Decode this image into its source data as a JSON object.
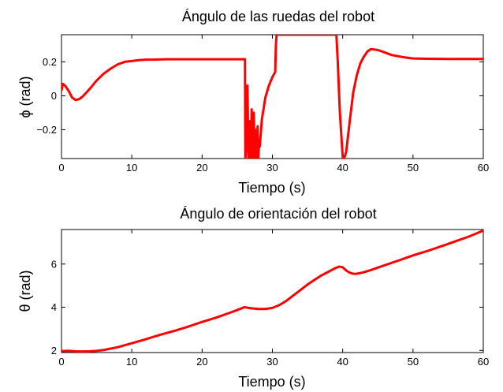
{
  "chart_data": [
    {
      "type": "line",
      "title": "Ángulo de las ruedas del robot",
      "xlabel": "Tiempo (s)",
      "ylabel": "ϕ (rad)",
      "xlim": [
        0,
        60
      ],
      "ylim": [
        -0.37,
        0.36
      ],
      "xticks": [
        0,
        10,
        20,
        30,
        40,
        50,
        60
      ],
      "yticks": [
        -0.2,
        0,
        0.2
      ],
      "ytick_labels": [
        "−0.2",
        "0",
        "0.2"
      ],
      "grid": false,
      "line_color": "#ff0000",
      "series": [
        {
          "x": [
            0,
            0.2,
            0.5,
            1,
            1.5,
            2,
            2.5,
            3,
            4,
            5,
            6,
            7,
            8,
            9,
            10,
            11,
            12,
            13,
            14,
            15,
            20,
            25,
            26.1,
            26.15,
            26.3,
            26.45,
            26.6,
            26.75,
            26.9,
            27.05,
            27.2,
            27.35,
            27.5,
            27.6,
            27.75,
            27.9,
            28,
            28.1,
            28.2,
            28.5,
            29,
            29.5,
            30,
            30.4,
            30.5,
            30.6,
            35,
            39.1,
            39.3,
            39.6,
            40,
            40.2,
            40.5,
            41,
            41.5,
            42,
            42.5,
            43,
            43.5,
            44,
            45,
            46,
            47,
            48,
            49,
            50,
            52,
            55,
            60
          ],
          "y": [
            0.03,
            0.07,
            0.06,
            0.03,
            -0.01,
            -0.025,
            -0.02,
            -0.005,
            0.04,
            0.09,
            0.13,
            0.16,
            0.185,
            0.2,
            0.205,
            0.21,
            0.213,
            0.213,
            0.214,
            0.215,
            0.215,
            0.215,
            0.215,
            -0.37,
            -0.3,
            0.06,
            -0.37,
            -0.15,
            -0.37,
            -0.08,
            -0.37,
            -0.1,
            -0.37,
            -0.2,
            -0.37,
            -0.18,
            -0.37,
            -0.28,
            -0.3,
            -0.14,
            -0.01,
            0.06,
            0.11,
            0.14,
            0.3,
            0.36,
            0.36,
            0.36,
            0.2,
            -0.1,
            -0.36,
            -0.37,
            -0.33,
            -0.15,
            0.02,
            0.12,
            0.19,
            0.23,
            0.26,
            0.275,
            0.27,
            0.255,
            0.24,
            0.232,
            0.225,
            0.22,
            0.218,
            0.217,
            0.217
          ]
        }
      ]
    },
    {
      "type": "line",
      "title": "Ángulo de orientación del robot",
      "xlabel": "Tiempo (s)",
      "ylabel": "θ (rad)",
      "xlim": [
        0,
        60
      ],
      "ylim": [
        1.9,
        7.6
      ],
      "xticks": [
        0,
        10,
        20,
        30,
        40,
        50,
        60
      ],
      "yticks": [
        2,
        4,
        6
      ],
      "ytick_labels": [
        "2",
        "4",
        "6"
      ],
      "grid": false,
      "line_color": "#ff0000",
      "series": [
        {
          "x": [
            0,
            1,
            2,
            3,
            4,
            5,
            6,
            8,
            10,
            12,
            14,
            16,
            18,
            20,
            22,
            24,
            25,
            26,
            27,
            28,
            29,
            30,
            31,
            32,
            33,
            34,
            35,
            36,
            37,
            38,
            39,
            39.5,
            40,
            40.5,
            41,
            41.5,
            42,
            43,
            44,
            46,
            48,
            50,
            52,
            54,
            56,
            58,
            60
          ],
          "y": [
            1.97,
            1.98,
            1.96,
            1.95,
            1.96,
            1.98,
            2.02,
            2.15,
            2.33,
            2.52,
            2.72,
            2.9,
            3.1,
            3.32,
            3.52,
            3.75,
            3.87,
            4.0,
            3.95,
            3.92,
            3.92,
            3.97,
            4.1,
            4.3,
            4.55,
            4.8,
            5.05,
            5.27,
            5.48,
            5.65,
            5.82,
            5.88,
            5.85,
            5.7,
            5.6,
            5.55,
            5.55,
            5.62,
            5.72,
            5.95,
            6.17,
            6.4,
            6.6,
            6.82,
            7.05,
            7.28,
            7.55
          ]
        }
      ]
    }
  ]
}
